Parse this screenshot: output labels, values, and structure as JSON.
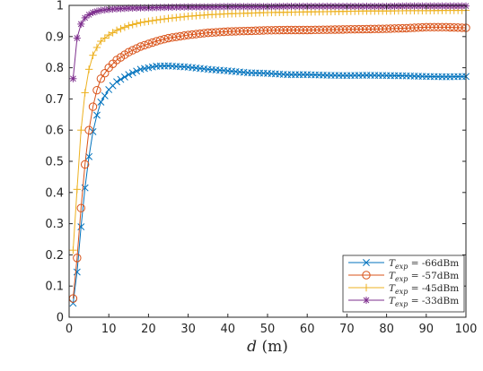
{
  "chart_data": {
    "type": "line",
    "title": "",
    "xlabel": "d (m)",
    "ylabel": "",
    "xlim": [
      0,
      100
    ],
    "ylim": [
      0,
      1
    ],
    "xticks": [
      "0",
      "10",
      "20",
      "30",
      "40",
      "50",
      "60",
      "70",
      "80",
      "90",
      "100"
    ],
    "yticks": [
      "0",
      "0.1",
      "0.2",
      "0.3",
      "0.4",
      "0.5",
      "0.6",
      "0.7",
      "0.8",
      "0.9",
      "1"
    ],
    "grid": false,
    "legend_position": "bottom-right",
    "series": [
      {
        "name": "T_exp = -66dBm",
        "color": "#0072BD",
        "marker": "x",
        "x": [
          1,
          2,
          3,
          4,
          5,
          6,
          7,
          8,
          10,
          12,
          15,
          18,
          22,
          25,
          30,
          35,
          40,
          45,
          50,
          55,
          60,
          65,
          70,
          75,
          80,
          85,
          90,
          95,
          100
        ],
        "y": [
          0.045,
          0.145,
          0.29,
          0.415,
          0.515,
          0.595,
          0.648,
          0.69,
          0.73,
          0.755,
          0.778,
          0.795,
          0.805,
          0.806,
          0.802,
          0.795,
          0.79,
          0.784,
          0.782,
          0.778,
          0.778,
          0.776,
          0.775,
          0.776,
          0.775,
          0.774,
          0.772,
          0.771,
          0.772
        ]
      },
      {
        "name": "T_exp = -57dBm",
        "color": "#D95319",
        "marker": "circle",
        "x": [
          1,
          2,
          3,
          4,
          5,
          6,
          7,
          8,
          10,
          12,
          15,
          18,
          22,
          25,
          30,
          35,
          40,
          45,
          50,
          55,
          60,
          65,
          70,
          75,
          80,
          85,
          90,
          95,
          100
        ],
        "y": [
          0.06,
          0.19,
          0.35,
          0.49,
          0.6,
          0.675,
          0.728,
          0.765,
          0.8,
          0.825,
          0.85,
          0.868,
          0.885,
          0.895,
          0.905,
          0.912,
          0.916,
          0.918,
          0.92,
          0.921,
          0.921,
          0.922,
          0.923,
          0.924,
          0.925,
          0.927,
          0.93,
          0.93,
          0.928
        ]
      },
      {
        "name": "T_exp = -45dBm",
        "color": "#EDB120",
        "marker": "plus",
        "x": [
          1,
          2,
          3,
          4,
          5,
          6,
          7,
          8,
          10,
          12,
          15,
          18,
          22,
          25,
          30,
          35,
          40,
          45,
          50,
          55,
          60,
          65,
          70,
          75,
          80,
          85,
          90,
          95,
          100
        ],
        "y": [
          0.215,
          0.41,
          0.6,
          0.72,
          0.795,
          0.84,
          0.865,
          0.885,
          0.905,
          0.92,
          0.935,
          0.945,
          0.953,
          0.958,
          0.965,
          0.97,
          0.973,
          0.975,
          0.977,
          0.978,
          0.979,
          0.98,
          0.981,
          0.982,
          0.982,
          0.983,
          0.983,
          0.984,
          0.984
        ]
      },
      {
        "name": "T_exp = -33dBm",
        "color": "#7E2F8E",
        "marker": "asterisk",
        "x": [
          1,
          2,
          3,
          4,
          5,
          6,
          7,
          8,
          10,
          12,
          15,
          18,
          22,
          25,
          30,
          35,
          40,
          45,
          50,
          55,
          60,
          65,
          70,
          75,
          80,
          85,
          90,
          95,
          100
        ],
        "y": [
          0.765,
          0.895,
          0.94,
          0.96,
          0.97,
          0.977,
          0.981,
          0.984,
          0.987,
          0.989,
          0.991,
          0.992,
          0.993,
          0.994,
          0.995,
          0.995,
          0.996,
          0.996,
          0.996,
          0.997,
          0.997,
          0.997,
          0.997,
          0.997,
          0.997,
          0.998,
          0.998,
          0.998,
          0.998
        ]
      }
    ],
    "legend": [
      {
        "sym": "T",
        "sub": "exp",
        "rest": " = -66dBm"
      },
      {
        "sym": "T",
        "sub": "exp",
        "rest": " = -57dBm"
      },
      {
        "sym": "T",
        "sub": "exp",
        "rest": " = -45dBm"
      },
      {
        "sym": "T",
        "sub": "exp",
        "rest": " = -33dBm"
      }
    ],
    "xlabel_parts": {
      "var": "d",
      "unit": " (m)"
    }
  }
}
